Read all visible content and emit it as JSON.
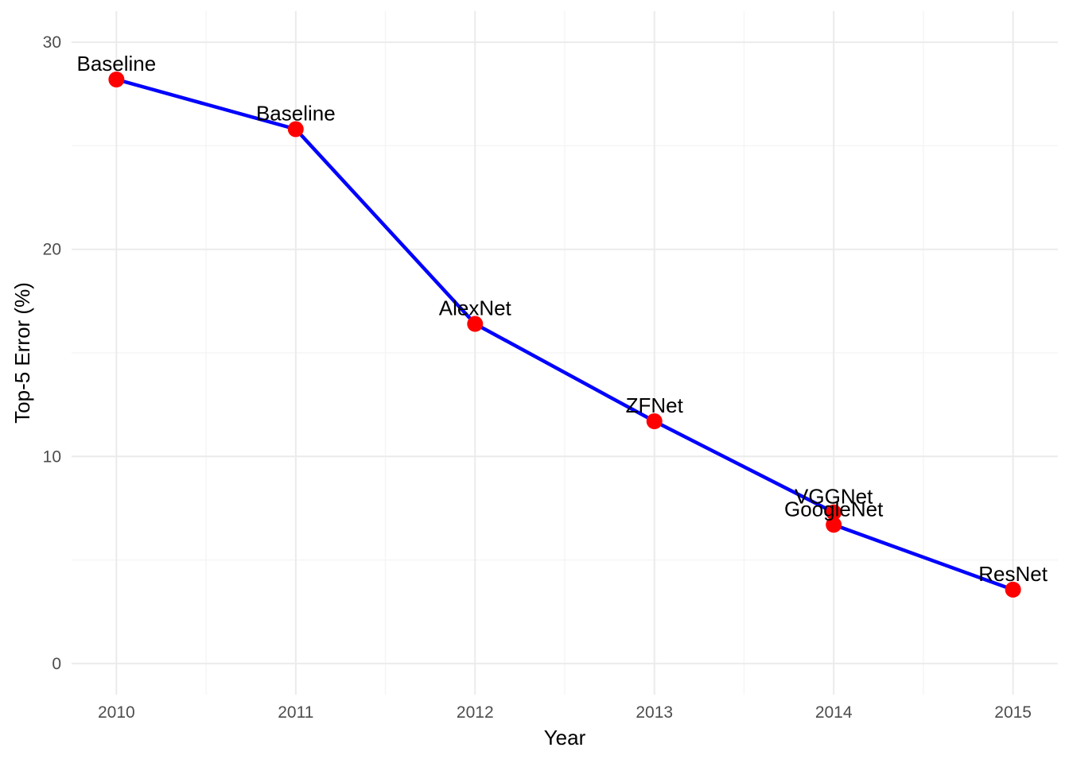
{
  "chart_data": {
    "type": "line",
    "title": "",
    "xlabel": "Year",
    "ylabel": "Top-5 Error (%)",
    "xlim": [
      2009.75,
      2015.25
    ],
    "ylim": [
      -1.5,
      31.5
    ],
    "x_ticks": [
      2010,
      2011,
      2012,
      2013,
      2014,
      2015
    ],
    "y_ticks": [
      0,
      10,
      20,
      30
    ],
    "grid": true,
    "legend": "none",
    "colors": {
      "line": "#0000ff",
      "point": "#ff0000",
      "grid_major": "#ebebeb",
      "grid_minor": "#f4f4f4"
    },
    "series": [
      {
        "points": [
          {
            "x": 2010,
            "y": 28.2,
            "label": "Baseline"
          },
          {
            "x": 2011,
            "y": 25.8,
            "label": "Baseline"
          },
          {
            "x": 2012,
            "y": 16.4,
            "label": "AlexNet"
          },
          {
            "x": 2013,
            "y": 11.7,
            "label": "ZFNet"
          },
          {
            "x": 2014,
            "y": 7.3,
            "label": "VGGNet"
          },
          {
            "x": 2014,
            "y": 6.7,
            "label": "GoogleNet"
          },
          {
            "x": 2015,
            "y": 3.57,
            "label": "ResNet"
          }
        ]
      }
    ]
  }
}
